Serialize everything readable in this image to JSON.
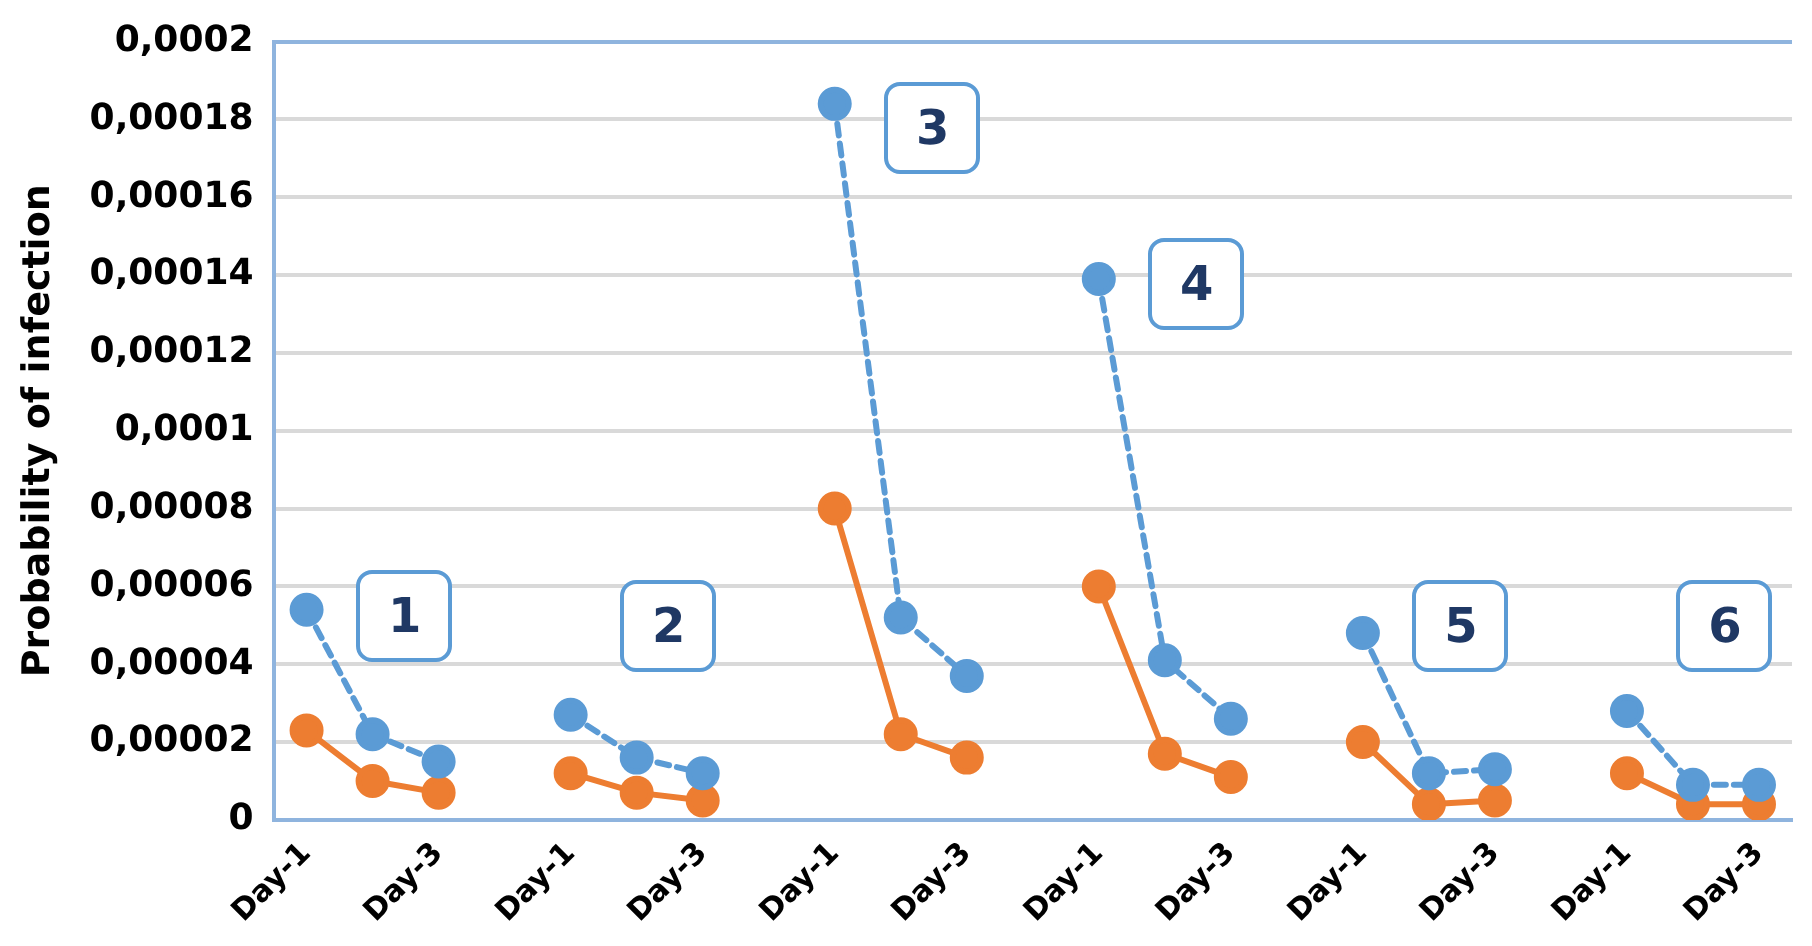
{
  "chart_data": {
    "type": "line",
    "ylabel": "Probability of infection",
    "categories": [
      "Day-1",
      null,
      "Day-3",
      null,
      "Day-1",
      null,
      "Day-3",
      null,
      "Day-1",
      null,
      "Day-3",
      null,
      "Day-1",
      null,
      "Day-3",
      null,
      "Day-1",
      null,
      "Day-3",
      null,
      "Day-1",
      null,
      "Day-3"
    ],
    "series": [
      {
        "color": "#5b9bd5",
        "line_style": "dashed",
        "values": [
          5.4e-05,
          2.2e-05,
          1.5e-05,
          null,
          2.7e-05,
          1.6e-05,
          1.2e-05,
          null,
          0.000184,
          5.2e-05,
          3.7e-05,
          null,
          0.000139,
          4.1e-05,
          2.6e-05,
          null,
          4.8e-05,
          1.2e-05,
          1.3e-05,
          null,
          2.8e-05,
          9e-06,
          9e-06
        ]
      },
      {
        "color": "#ed7d31",
        "line_style": "solid",
        "values": [
          2.3e-05,
          1e-05,
          7e-06,
          null,
          1.2e-05,
          7e-06,
          5e-06,
          null,
          8e-05,
          2.2e-05,
          1.6e-05,
          null,
          6e-05,
          1.7e-05,
          1.1e-05,
          null,
          2e-05,
          4e-06,
          5e-06,
          null,
          1.2e-05,
          4e-06,
          4e-06
        ]
      }
    ],
    "ylim": [
      0,
      0.0002
    ],
    "yticks": [
      0,
      {
        "value": 2e-05,
        "label": "0,00002"
      },
      {
        "value": 4e-05,
        "label": "0,00004"
      },
      {
        "value": 6e-05,
        "label": "0,00006"
      },
      {
        "value": 8e-05,
        "label": "0,00008"
      },
      {
        "value": 0.0001,
        "label": "0,0001"
      },
      {
        "value": 0.00012,
        "label": "0,00012"
      },
      {
        "value": 0.00014,
        "label": "0,00014"
      },
      {
        "value": 0.00016,
        "label": "0,00016"
      },
      {
        "value": 0.00018,
        "label": "0,00018"
      },
      {
        "value": 0.0002,
        "label": "0,0002"
      }
    ],
    "annotations": [
      "1",
      "2",
      "3",
      "4",
      "5",
      "6"
    ],
    "grid": "y",
    "legend": false,
    "marker": "circle"
  }
}
